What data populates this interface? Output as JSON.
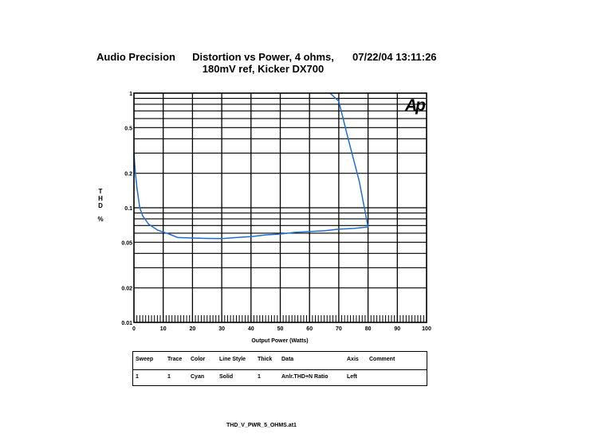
{
  "header": {
    "company": "Audio Precision",
    "title_line1": "Distortion vs Power, 4 ohms,",
    "title_line2": "180mV ref, Kicker DX700",
    "datetime": "07/22/04 13:11:26"
  },
  "logo": "Ap",
  "chart_data": {
    "type": "line",
    "title": "Distortion vs Power, 4 ohms, 180mV ref, Kicker DX700",
    "xlabel": "Output Power (Watts)",
    "ylabel": "THD %",
    "yscale": "log",
    "xlim": [
      0,
      100
    ],
    "ylim": [
      0.01,
      1
    ],
    "x_ticks": [
      "0",
      "10",
      "20",
      "30",
      "40",
      "50",
      "60",
      "70",
      "80",
      "90",
      "100"
    ],
    "y_ticks": [
      {
        "v": 1,
        "label": "1"
      },
      {
        "v": 0.5,
        "label": "0.5"
      },
      {
        "v": 0.2,
        "label": "0.2"
      },
      {
        "v": 0.1,
        "label": "0.1"
      },
      {
        "v": 0.05,
        "label": "0.05"
      },
      {
        "v": 0.02,
        "label": "0.02"
      },
      {
        "v": 0.01,
        "label": "0.01"
      }
    ],
    "grid": true,
    "series": [
      {
        "color": "#1f6fd6",
        "x": [
          0,
          0.5,
          1,
          2,
          3,
          5,
          8,
          12,
          15,
          20,
          25,
          30,
          35,
          40,
          45,
          50,
          55,
          60,
          65,
          70,
          75,
          80,
          77,
          73,
          70,
          67
        ],
        "y": [
          0.3,
          0.2,
          0.15,
          0.1,
          0.085,
          0.072,
          0.064,
          0.059,
          0.055,
          0.0545,
          0.054,
          0.0538,
          0.055,
          0.056,
          0.058,
          0.059,
          0.061,
          0.062,
          0.063,
          0.065,
          0.066,
          0.068,
          0.17,
          0.42,
          0.85,
          1.0
        ]
      }
    ]
  },
  "legend_table": {
    "headers": [
      "Sweep",
      "Trace",
      "Color",
      "Line Style",
      "Thick",
      "Data",
      "Axis",
      "Comment"
    ],
    "row": [
      "1",
      "1",
      "Cyan",
      "Solid",
      "1",
      "Anlr.THD+N Ratio",
      "Left",
      ""
    ]
  },
  "footer": "THD_V_PWR_5_OHMS.at1"
}
